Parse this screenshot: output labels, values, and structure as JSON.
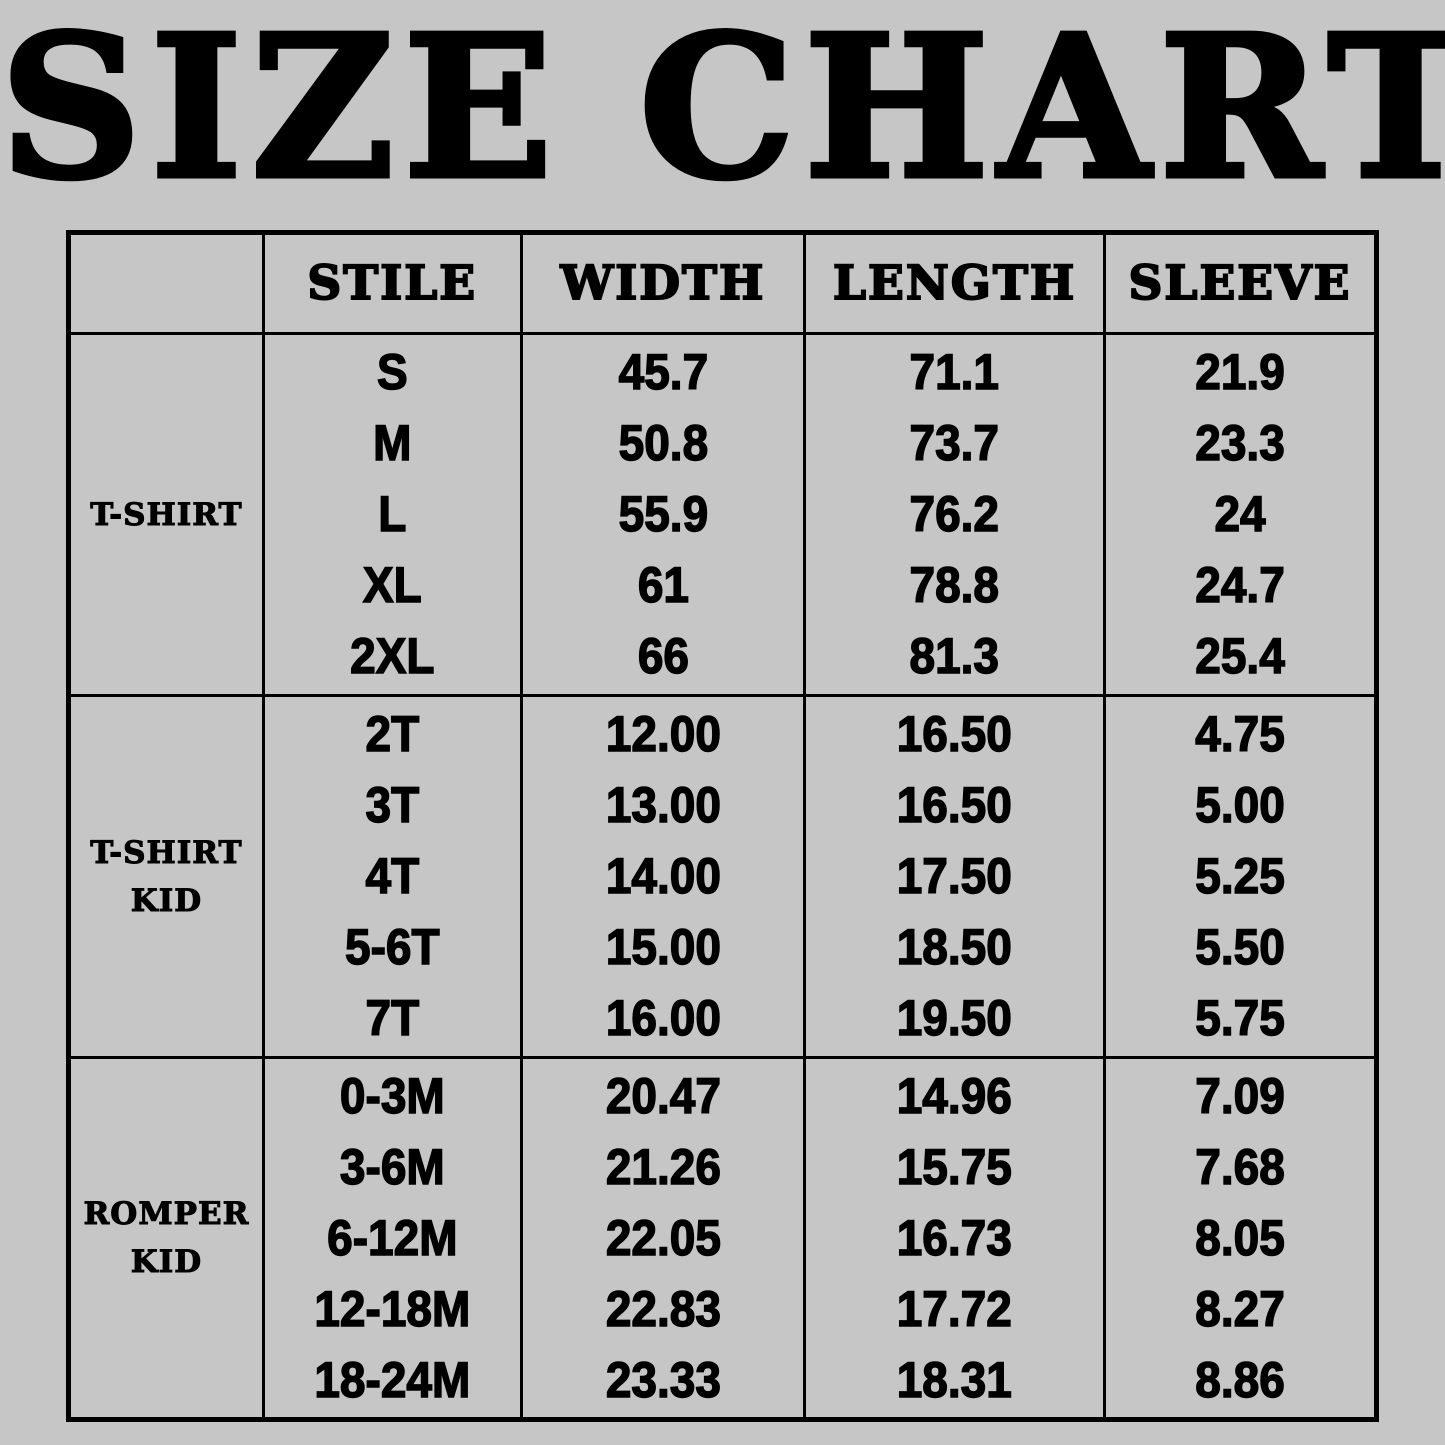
{
  "title": "SIZE CHART",
  "colors": {
    "background": "#c6c6c6",
    "text": "#000000",
    "border": "#000000"
  },
  "table": {
    "headers": [
      "",
      "STILE",
      "WIDTH",
      "LENGTH",
      "SLEEVE"
    ],
    "sections": [
      {
        "label_lines": [
          "T-SHIRT"
        ],
        "stile": [
          "S",
          "M",
          "L",
          "XL",
          "2XL"
        ],
        "width": [
          "45.7",
          "50.8",
          "55.9",
          "61",
          "66"
        ],
        "length": [
          "71.1",
          "73.7",
          "76.2",
          "78.8",
          "81.3"
        ],
        "sleeve": [
          "21.9",
          "23.3",
          "24",
          "24.7",
          "25.4"
        ]
      },
      {
        "label_lines": [
          "T-SHIRT",
          "KID"
        ],
        "stile": [
          "2T",
          "3T",
          "4T",
          "5-6T",
          "7T"
        ],
        "width": [
          "12.00",
          "13.00",
          "14.00",
          "15.00",
          "16.00"
        ],
        "length": [
          "16.50",
          "16.50",
          "17.50",
          "18.50",
          "19.50"
        ],
        "sleeve": [
          "4.75",
          "5.00",
          "5.25",
          "5.50",
          "5.75"
        ]
      },
      {
        "label_lines": [
          "ROMPER",
          "KID"
        ],
        "stile": [
          "0-3M",
          "3-6M",
          "6-12M",
          "12-18M",
          "18-24M"
        ],
        "width": [
          "20.47",
          "21.26",
          "22.05",
          "22.83",
          "23.33"
        ],
        "length": [
          "14.96",
          "15.75",
          "16.73",
          "17.72",
          "18.31"
        ],
        "sleeve": [
          "7.09",
          "7.68",
          "8.05",
          "8.27",
          "8.86"
        ]
      }
    ]
  }
}
